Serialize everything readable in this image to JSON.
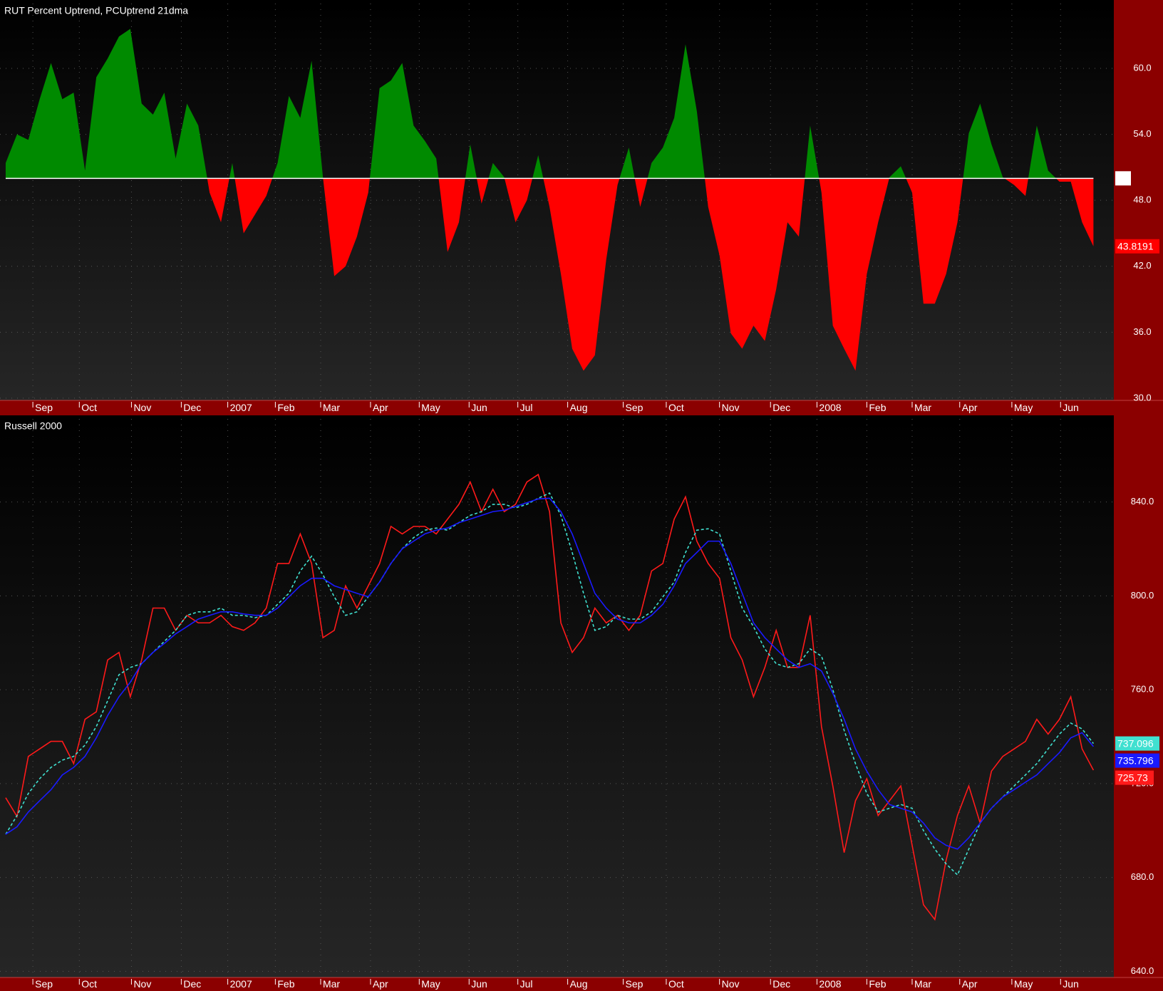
{
  "chart_data": [
    {
      "type": "area",
      "title": "RUT Percent Uptrend, PCUptrend 21dma",
      "baseline": 50,
      "above_color": "#008a00",
      "below_color": "#ff0000",
      "xlim": [
        -0.5,
        97.8
      ],
      "xticks": [
        {
          "value": 2.4,
          "label": "Sep"
        },
        {
          "value": 6.5,
          "label": "Oct"
        },
        {
          "value": 11.1,
          "label": "Nov"
        },
        {
          "value": 15.5,
          "label": "Dec"
        },
        {
          "value": 19.6,
          "label": "2007"
        },
        {
          "value": 23.8,
          "label": "Feb"
        },
        {
          "value": 27.8,
          "label": "Mar"
        },
        {
          "value": 32.2,
          "label": "Apr"
        },
        {
          "value": 36.5,
          "label": "May"
        },
        {
          "value": 40.9,
          "label": "Jun"
        },
        {
          "value": 45.2,
          "label": "Jul"
        },
        {
          "value": 49.6,
          "label": "Aug"
        },
        {
          "value": 54.5,
          "label": "Sep"
        },
        {
          "value": 58.3,
          "label": "Oct"
        },
        {
          "value": 63,
          "label": "Nov"
        },
        {
          "value": 67.5,
          "label": "Dec"
        },
        {
          "value": 71.6,
          "label": "2008"
        },
        {
          "value": 76,
          "label": "Feb"
        },
        {
          "value": 80,
          "label": "Mar"
        },
        {
          "value": 84.2,
          "label": "Apr"
        },
        {
          "value": 88.8,
          "label": "May"
        },
        {
          "value": 93.1,
          "label": "Jun"
        }
      ],
      "ylim": [
        29.8,
        65.9
      ],
      "yticks": [
        {
          "value": 30,
          "label": "30.0"
        },
        {
          "value": 36,
          "label": "36.0"
        },
        {
          "value": 42,
          "label": "42.0"
        },
        {
          "value": 48,
          "label": "48.0"
        },
        {
          "value": 54,
          "label": "54.0"
        },
        {
          "value": 60,
          "label": "60.0"
        }
      ],
      "grid": true,
      "values": [
        51.4,
        54,
        53.5,
        57.2,
        60.5,
        57.2,
        57.8,
        50.7,
        59.2,
        60.9,
        62.9,
        63.6,
        56.8,
        55.8,
        57.8,
        51.8,
        56.8,
        54.8,
        48.7,
        46.0,
        51.4,
        45.0,
        46.7,
        48.4,
        51.4,
        57.5,
        55.5,
        60.7,
        50.1,
        41.1,
        42.0,
        44.7,
        48.7,
        58.2,
        58.9,
        60.5,
        54.8,
        53.4,
        51.8,
        43.3,
        46.0,
        53.1,
        47.7,
        51.4,
        50.1,
        46.0,
        48.0,
        52.1,
        47.4,
        41.3,
        34.5,
        32.5,
        33.9,
        42.6,
        49.4,
        52.8,
        47.4,
        51.4,
        52.8,
        55.5,
        62.2,
        56.1,
        47.4,
        43.0,
        35.9,
        34.5,
        36.6,
        35.2,
        39.9,
        46.0,
        44.7,
        54.8,
        48.7,
        36.6,
        34.5,
        32.5,
        41.3,
        46.0,
        50.1,
        51.1,
        48.7,
        38.6,
        38.6,
        41.3,
        46.0,
        54.1,
        56.8,
        53.1,
        50.1,
        49.4,
        48.4,
        54.8,
        50.7,
        49.7,
        49.7,
        46.0,
        43.8191
      ]
    },
    {
      "type": "line",
      "title": "Russell 2000",
      "xlim": [
        -0.5,
        97.8
      ],
      "xticks": [
        {
          "value": 2.4,
          "label": "Sep"
        },
        {
          "value": 6.5,
          "label": "Oct"
        },
        {
          "value": 11.1,
          "label": "Nov"
        },
        {
          "value": 15.5,
          "label": "Dec"
        },
        {
          "value": 19.6,
          "label": "2007"
        },
        {
          "value": 23.8,
          "label": "Feb"
        },
        {
          "value": 27.8,
          "label": "Mar"
        },
        {
          "value": 32.2,
          "label": "Apr"
        },
        {
          "value": 36.5,
          "label": "May"
        },
        {
          "value": 40.9,
          "label": "Jun"
        },
        {
          "value": 45.2,
          "label": "Jul"
        },
        {
          "value": 49.6,
          "label": "Aug"
        },
        {
          "value": 54.5,
          "label": "Sep"
        },
        {
          "value": 58.3,
          "label": "Oct"
        },
        {
          "value": 63,
          "label": "Nov"
        },
        {
          "value": 67.5,
          "label": "Dec"
        },
        {
          "value": 71.6,
          "label": "2008"
        },
        {
          "value": 76,
          "label": "Feb"
        },
        {
          "value": 80,
          "label": "Mar"
        },
        {
          "value": 84.2,
          "label": "Apr"
        },
        {
          "value": 88.8,
          "label": "May"
        },
        {
          "value": 93.1,
          "label": "Jun"
        }
      ],
      "ylim": [
        637.4,
        875.4
      ],
      "yticks": [
        {
          "value": 640,
          "label": "640.0"
        },
        {
          "value": 680,
          "label": "680.0"
        },
        {
          "value": 720,
          "label": "720.0"
        },
        {
          "value": 760,
          "label": "760.0"
        },
        {
          "value": 800,
          "label": "800.0"
        },
        {
          "value": 840,
          "label": "840.0"
        }
      ],
      "grid": true,
      "series": [
        {
          "color": "#ff1a1a",
          "label_text_color": "#ff9090",
          "dashed": false,
          "values": [
            714,
            706,
            731.6,
            734.8,
            738,
            738,
            728.5,
            747.4,
            750.6,
            772.7,
            775.9,
            757,
            772.7,
            794.8,
            794.8,
            785.3,
            791.7,
            788.5,
            788.5,
            791.7,
            786.9,
            785.3,
            788.5,
            794.8,
            813.8,
            813.8,
            826.4,
            813.8,
            782.2,
            785.3,
            804.3,
            794.8,
            804.3,
            813.8,
            829.6,
            826.4,
            829.6,
            829.6,
            826.4,
            832.7,
            839,
            848.5,
            835.9,
            845.4,
            835.9,
            839,
            848.5,
            851.7,
            835.9,
            788.5,
            775.9,
            782.2,
            794.8,
            788.5,
            791.7,
            785.3,
            791.7,
            810.6,
            813.8,
            832.7,
            842.2,
            823.3,
            813.8,
            807.5,
            782.2,
            772.7,
            757,
            769.5,
            785.3,
            769.5,
            769.5,
            791.7,
            744.3,
            719,
            690.6,
            712.7,
            722.1,
            706.4,
            712.7,
            719,
            693.7,
            668.4,
            662.1,
            687.4,
            706.4,
            719,
            703.2,
            725.3,
            731.6,
            734.8,
            738,
            747.4,
            741.1,
            747.4,
            757,
            734.8,
            725.73
          ]
        },
        {
          "color": "#40e0d0",
          "label_text_color": "#003030",
          "dashed": true,
          "values": [
            698.4,
            706.4,
            715.8,
            722.1,
            726.9,
            730,
            731.6,
            736.4,
            744.3,
            755.3,
            766.4,
            769.5,
            771.1,
            775.9,
            780.6,
            785.3,
            791.7,
            793.2,
            793.2,
            794.8,
            791.7,
            791.7,
            790.7,
            791.7,
            796.4,
            801.1,
            810.6,
            816.9,
            809,
            799.6,
            791.7,
            793.2,
            799.6,
            805.9,
            813.8,
            820.1,
            824.8,
            828,
            828.9,
            828,
            831.2,
            834.3,
            835.9,
            839,
            839,
            837.5,
            839,
            841.6,
            843.8,
            834.3,
            818.5,
            801.1,
            785.3,
            786.9,
            791.7,
            790.1,
            790.1,
            793.2,
            799.6,
            805.9,
            818.5,
            828,
            828.6,
            826.4,
            810.6,
            794.8,
            786.9,
            777.4,
            771.1,
            769.5,
            771.1,
            777.4,
            774.3,
            760.1,
            742.7,
            728.5,
            715.8,
            707.9,
            709.5,
            711.1,
            709.5,
            700,
            692.1,
            685.8,
            681.1,
            692.1,
            703.2,
            709.5,
            714.3,
            719,
            723.7,
            728.5,
            734.8,
            741.1,
            745.8,
            743.3,
            737.096
          ]
        },
        {
          "color": "#1a1aff",
          "label_text_color": "#ffffff",
          "dashed": false,
          "values": [
            698.4,
            701.6,
            707.9,
            712.7,
            717.4,
            723.7,
            726.9,
            731.6,
            739.5,
            749,
            757,
            763.2,
            771.1,
            775.9,
            779.7,
            783.8,
            786.9,
            790.1,
            791.7,
            793.2,
            793.2,
            792.3,
            791.7,
            791.7,
            794.8,
            799.6,
            804.3,
            807.5,
            807.5,
            804.3,
            802.7,
            801.1,
            799.6,
            805.9,
            813.8,
            820.1,
            823.3,
            826.4,
            828,
            828.9,
            831.2,
            832.7,
            834.3,
            835.9,
            836.5,
            838.1,
            839.7,
            841.3,
            841.6,
            835.9,
            826.4,
            813.8,
            801.1,
            794.8,
            790.1,
            788.5,
            788.5,
            791.7,
            796.4,
            804.3,
            813.8,
            818.5,
            823.3,
            823.3,
            813.8,
            801.1,
            788.5,
            782.2,
            777.4,
            772.7,
            769.5,
            771.1,
            768,
            758.5,
            747.4,
            734.8,
            725.3,
            717.4,
            711.1,
            709.5,
            707.9,
            703.2,
            696.9,
            693.7,
            692.1,
            696.9,
            703.2,
            709.5,
            714.3,
            717.4,
            720.6,
            723.7,
            728.5,
            733.2,
            739.5,
            741.7,
            735.796
          ]
        }
      ]
    }
  ]
}
